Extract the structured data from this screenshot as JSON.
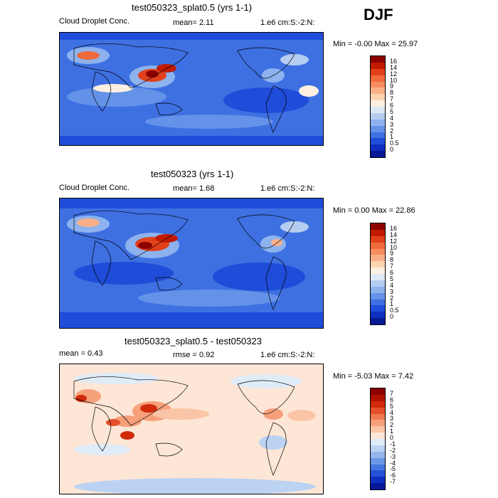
{
  "season": "DJF",
  "panels": [
    {
      "title": "test050323_splat0.5 (yrs 1-1)",
      "label": "Cloud Droplet Conc.",
      "mean_text": "mean=   2.11",
      "units": "1.e6 cm:S:-2:N:",
      "minmax": "Min =  -0.00 Max =  25.97",
      "levels": [
        "16",
        "14",
        "12",
        "10",
        "9",
        "8",
        "7",
        "6",
        "5",
        "4",
        "3",
        "2",
        "1",
        "0.5",
        "0"
      ],
      "colors": [
        "#8c0000",
        "#c21a00",
        "#e0401a",
        "#f06a3c",
        "#f68c60",
        "#f9b088",
        "#fcd4b0",
        "#fdf0e0",
        "#dde9f6",
        "#b6cdf2",
        "#8db2ee",
        "#6392e8",
        "#3e70e2",
        "#1f4cd8",
        "#0e2fbf",
        "#061a96"
      ]
    },
    {
      "title": "test050323 (yrs 1-1)",
      "label": "Cloud Droplet Conc.",
      "mean_text": "mean=   1.68",
      "units": "1.e6 cm:S:-2:N:",
      "minmax": "Min =   0.00 Max =  22.86",
      "levels": [
        "16",
        "14",
        "12",
        "10",
        "9",
        "8",
        "7",
        "6",
        "5",
        "4",
        "3",
        "2",
        "1",
        "0.5",
        "0"
      ],
      "colors": [
        "#8c0000",
        "#c21a00",
        "#e0401a",
        "#f06a3c",
        "#f68c60",
        "#f9b088",
        "#fcd4b0",
        "#fdf0e0",
        "#dde9f6",
        "#b6cdf2",
        "#8db2ee",
        "#6392e8",
        "#3e70e2",
        "#1f4cd8",
        "#0e2fbf",
        "#061a96"
      ]
    },
    {
      "title": "test050323_splat0.5 - test050323",
      "mean_text": "mean =   0.43",
      "rmse_text": "rmse =   0.92",
      "units": "1.e6 cm:S:-2:N:",
      "minmax": "Min =  -5.03 Max =   7.42",
      "levels": [
        "7",
        "6",
        "5",
        "4",
        "3",
        "2",
        "1",
        "0",
        "-1",
        "-2",
        "-3",
        "-4",
        "-5",
        "-6",
        "-7"
      ],
      "colors": [
        "#8c0000",
        "#b01400",
        "#d02a0a",
        "#e6502a",
        "#f07850",
        "#f6a07a",
        "#fac4a6",
        "#fde6d6",
        "#e0ebf8",
        "#bcd2f2",
        "#94b6ec",
        "#6c96e6",
        "#4676e0",
        "#2452d6",
        "#0e30c0",
        "#06189a"
      ]
    }
  ]
}
